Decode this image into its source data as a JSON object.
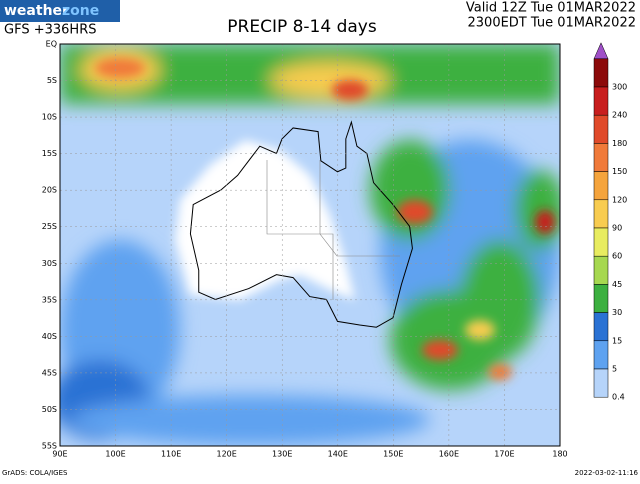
{
  "header": {
    "brand": {
      "part1": "weather",
      "part2": "zone"
    },
    "model": "GFS +336HRS",
    "title": "PRECIP 8-14 days",
    "valid_utc": "Valid 12Z Tue 01MAR2022",
    "valid_local": "2300EDT Tue 01MAR2022"
  },
  "axes": {
    "latitudes": [
      "EQ",
      "5S",
      "10S",
      "15S",
      "20S",
      "25S",
      "30S",
      "35S",
      "40S",
      "45S",
      "50S",
      "55S"
    ],
    "longitudes": [
      "90E",
      "100E",
      "110E",
      "120E",
      "130E",
      "140E",
      "150E",
      "160E",
      "170E",
      "180"
    ]
  },
  "legend": {
    "labels": [
      "300",
      "240",
      "180",
      "150",
      "120",
      "90",
      "60",
      "45",
      "30",
      "15",
      "5",
      "0.4"
    ],
    "colors": [
      "#8c0a0a",
      "#c81e1e",
      "#e04a2a",
      "#f07a3a",
      "#f5a43c",
      "#f8cc50",
      "#e8ec60",
      "#a6d850",
      "#3cb040",
      "#2a72d4",
      "#5ea2f0",
      "#b6d4fa"
    ],
    "cap_color": "#a050c8"
  },
  "footer": {
    "credit": "GrADS: COLA/IGES",
    "timestamp": "2022-03-02-11:16"
  }
}
